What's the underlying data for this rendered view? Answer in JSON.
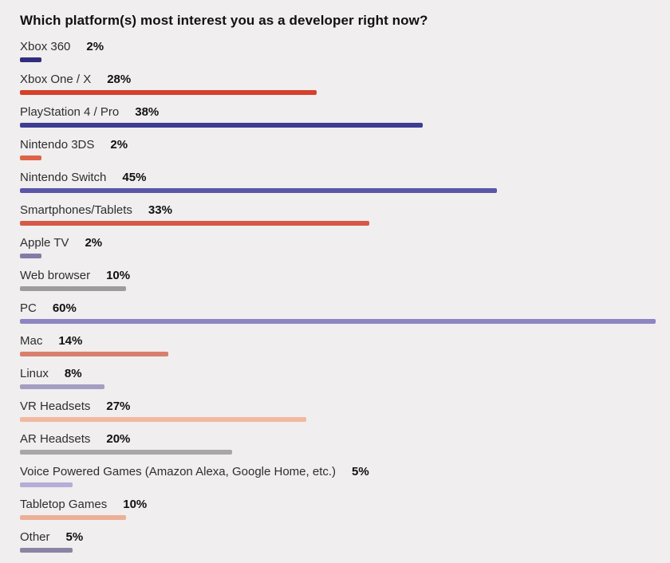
{
  "page": {
    "background": "#f0eeee",
    "title_color": "#111111",
    "label_color": "#2e2e2e"
  },
  "chart_data": {
    "type": "bar",
    "orientation": "horizontal",
    "title": "Which platform(s) most interest you as a developer right now?",
    "categories": [
      "Xbox 360",
      "Xbox One / X",
      "PlayStation 4 / Pro",
      "Nintendo 3DS",
      "Nintendo Switch",
      "Smartphones/Tablets",
      "Apple TV",
      "Web browser",
      "PC",
      "Mac",
      "Linux",
      "VR Headsets",
      "AR Headsets",
      "Voice Powered Games (Amazon Alexa, Google Home, etc.)",
      "Tabletop Games",
      "Other"
    ],
    "values": [
      2,
      28,
      38,
      2,
      45,
      33,
      2,
      10,
      60,
      14,
      8,
      27,
      20,
      5,
      10,
      5
    ],
    "value_labels": [
      "2%",
      "28%",
      "38%",
      "2%",
      "45%",
      "33%",
      "2%",
      "10%",
      "60%",
      "14%",
      "8%",
      "27%",
      "20%",
      "5%",
      "10%",
      "5%"
    ],
    "colors": [
      "#312d7c",
      "#d5402b",
      "#3d3d93",
      "#dd6445",
      "#5b57a8",
      "#d65847",
      "#837ba8",
      "#9c9c9c",
      "#8c85c1",
      "#d97f6e",
      "#a49ec3",
      "#f1b9a0",
      "#a7a7a7",
      "#b5aed6",
      "#ecb096",
      "#8a85a3"
    ],
    "scale_max": 60,
    "xlabel": "",
    "ylabel": "",
    "grid": false,
    "legend": false
  }
}
